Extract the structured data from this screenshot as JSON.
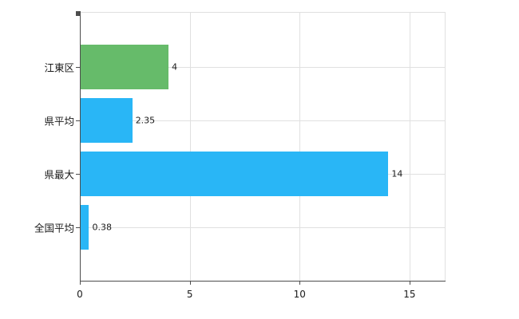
{
  "chart_data": {
    "type": "bar",
    "orientation": "horizontal",
    "title": "",
    "xlabel": "",
    "ylabel": "",
    "categories": [
      "江東区",
      "県平均",
      "県最大",
      "全国平均"
    ],
    "values": [
      4,
      2.35,
      14,
      0.38
    ],
    "value_labels": [
      "4",
      "2.35",
      "14",
      "0.38"
    ],
    "bar_colors": [
      "#66bb6a",
      "#29b6f6",
      "#29b6f6",
      "#29b6f6"
    ],
    "x_ticks": [
      0,
      5,
      10,
      15
    ],
    "x_tick_labels": [
      "0",
      "5",
      "10",
      "15"
    ],
    "xlim": [
      0,
      16.6
    ],
    "grid": true,
    "legend": false,
    "colors": {
      "background": "#ffffff",
      "gridline": "#e0e0e0",
      "axis": "#4d4d4d",
      "text": "#1a1a1a",
      "green_bar": "#66bb6a",
      "blue_bar": "#29b6f6"
    }
  }
}
